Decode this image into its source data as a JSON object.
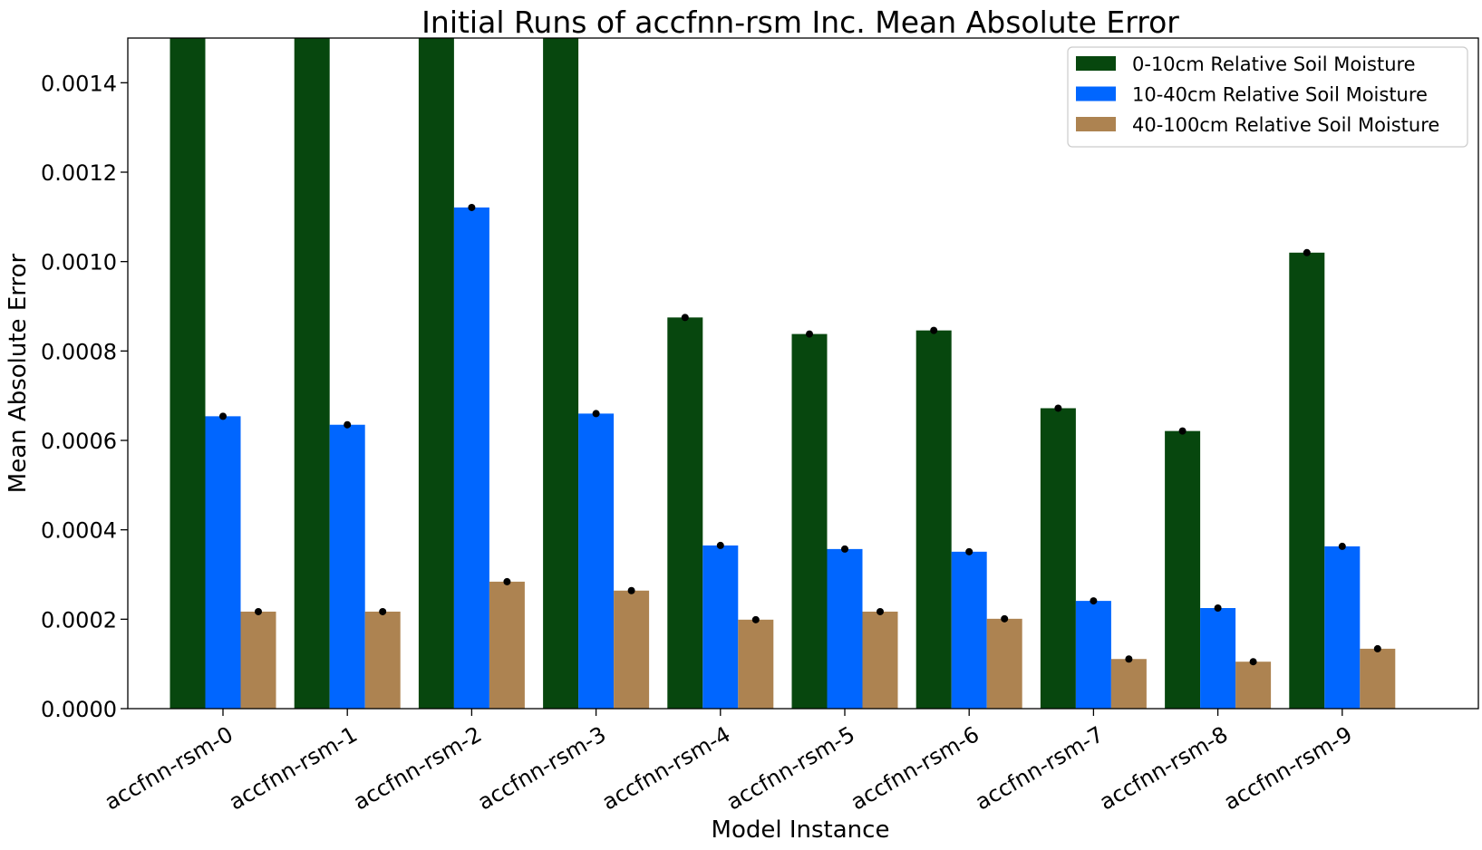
{
  "chart_data": {
    "type": "bar",
    "title": "Initial Runs of accfnn-rsm Inc. Mean Absolute Error",
    "xlabel": "Model Instance",
    "ylabel": "Mean Absolute Error",
    "ylim": [
      0,
      0.0015
    ],
    "yticks": [
      "0.0000",
      "0.0002",
      "0.0004",
      "0.0006",
      "0.0008",
      "0.0010",
      "0.0012",
      "0.0014"
    ],
    "ytick_values": [
      0,
      0.0002,
      0.0004,
      0.0006,
      0.0008,
      0.001,
      0.0012,
      0.0014
    ],
    "categories": [
      "accfnn-rsm-0",
      "accfnn-rsm-1",
      "accfnn-rsm-2",
      "accfnn-rsm-3",
      "accfnn-rsm-4",
      "accfnn-rsm-5",
      "accfnn-rsm-6",
      "accfnn-rsm-7",
      "accfnn-rsm-8",
      "accfnn-rsm-9"
    ],
    "series": [
      {
        "name": "0-10cm Relative Soil Moisture",
        "color": "#07470e",
        "values": [
          0.0015,
          0.0015,
          0.0015,
          0.0015,
          0.000875,
          0.000838,
          0.000846,
          0.000672,
          0.000621,
          0.00102
        ],
        "note_clipped_at_ylim": true
      },
      {
        "name": "10-40cm Relative Soil Moisture",
        "color": "#0066ff",
        "values": [
          0.000654,
          0.000635,
          0.001121,
          0.00066,
          0.000365,
          0.000357,
          0.000351,
          0.000241,
          0.000225,
          0.000363
        ]
      },
      {
        "name": "40-100cm Relative Soil Moisture",
        "color": "#ad8351",
        "values": [
          0.000217,
          0.000217,
          0.000284,
          0.000264,
          0.000199,
          0.000217,
          0.000201,
          0.000111,
          0.000105,
          0.000134
        ]
      }
    ],
    "markers": "black dots at each bar top",
    "grid": false,
    "legend_position": "top-right"
  }
}
